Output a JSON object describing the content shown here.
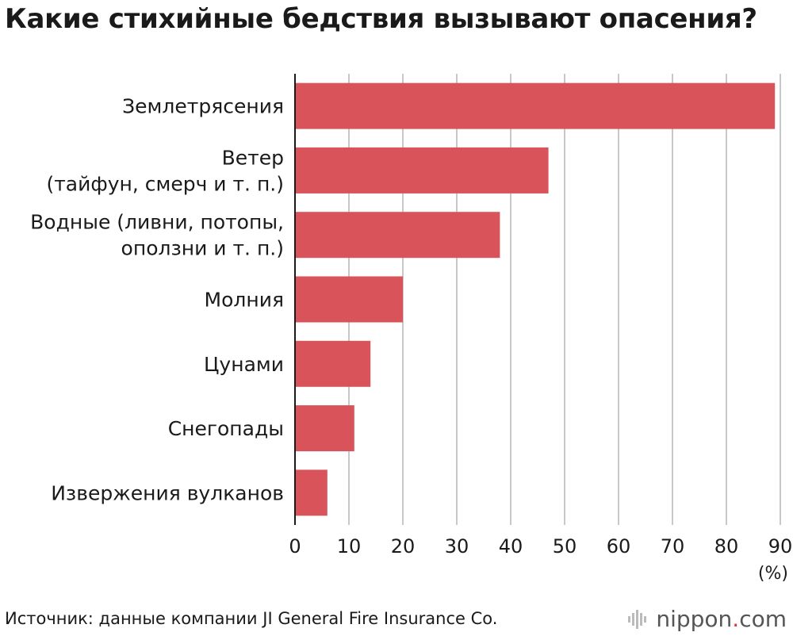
{
  "title": "Какие стихийные бедствия вызывают опасения?",
  "source": "Источник: данные компании JI General Fire Insurance Co.",
  "brand": {
    "name": "nippon",
    "dot": ".",
    "tld": "com"
  },
  "colors": {
    "bar": "#d9535a",
    "grid": "#c8c8c8",
    "axis": "#1a1a1a",
    "brand_dot": "#d9363e"
  },
  "chart_data": {
    "type": "bar",
    "orientation": "horizontal",
    "categories": [
      [
        "Землетрясения"
      ],
      [
        "Ветер",
        "(тайфун, смерч и т. п.)"
      ],
      [
        "Водные (ливни, потопы,",
        "оползни и т. п.)"
      ],
      [
        "Молния"
      ],
      [
        "Цунами"
      ],
      [
        "Снегопады"
      ],
      [
        "Извержения вулканов"
      ]
    ],
    "values": [
      89,
      47,
      38,
      20,
      14,
      11,
      6
    ],
    "xlim": [
      0,
      90
    ],
    "xticks": [
      0,
      10,
      20,
      30,
      40,
      50,
      60,
      70,
      80,
      90
    ],
    "xunit": "(%)",
    "grid": true
  }
}
